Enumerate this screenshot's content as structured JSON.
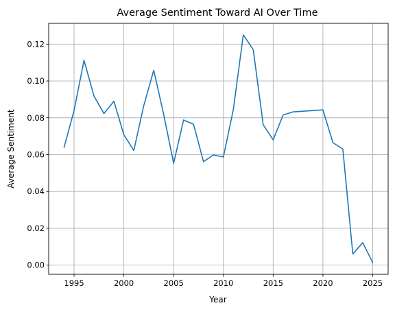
{
  "chart_data": {
    "type": "line",
    "title": "Average Sentiment Toward AI Over Time",
    "xlabel": "Year",
    "ylabel": "Average Sentiment",
    "xlim": [
      1992.45,
      2026.55
    ],
    "ylim": [
      -0.005,
      0.1313
    ],
    "xticks": [
      1995,
      2000,
      2005,
      2010,
      2015,
      2020,
      2025
    ],
    "yticks": [
      0.0,
      0.02,
      0.04,
      0.06,
      0.08,
      0.1,
      0.12
    ],
    "ytick_labels": [
      "0.00",
      "0.02",
      "0.04",
      "0.06",
      "0.08",
      "0.10",
      "0.12"
    ],
    "grid": true,
    "legend": "none",
    "series": [
      {
        "color": "#1f77b4",
        "x": [
          1994,
          1995,
          1996,
          1997,
          1998,
          1999,
          2000,
          2001,
          2002,
          2003,
          2004,
          2005,
          2006,
          2007,
          2008,
          2009,
          2010,
          2011,
          2012,
          2013,
          2014,
          2015,
          2016,
          2017,
          2020,
          2021,
          2022,
          2023,
          2024,
          2025
        ],
        "values": [
          0.064,
          0.084,
          0.1112,
          0.0918,
          0.0823,
          0.089,
          0.0708,
          0.0622,
          0.0866,
          0.1058,
          0.0819,
          0.0553,
          0.0788,
          0.0765,
          0.0562,
          0.0598,
          0.0587,
          0.0845,
          0.125,
          0.117,
          0.0762,
          0.068,
          0.0815,
          0.0832,
          0.0843,
          0.0665,
          0.063,
          0.006,
          0.0122,
          0.0013
        ]
      }
    ]
  }
}
